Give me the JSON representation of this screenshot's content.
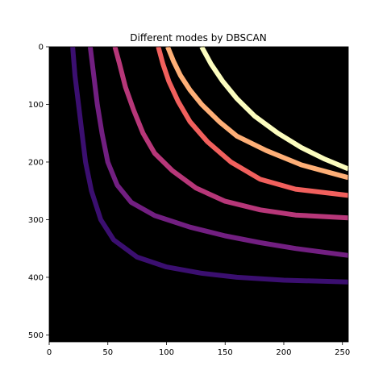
{
  "chart_data": {
    "type": "heatmap",
    "title": "Different modes by DBSCAN",
    "xlabel": "",
    "ylabel": "",
    "xlim": [
      0,
      255
    ],
    "ylim": [
      512,
      0
    ],
    "x_ticks": [
      0,
      50,
      100,
      150,
      200,
      250
    ],
    "y_ticks": [
      0,
      100,
      200,
      300,
      400,
      500
    ],
    "background_color": "#000000",
    "colormap": "inferno",
    "series": [
      {
        "color": "#3b0f70",
        "points": [
          [
            20,
            0
          ],
          [
            22,
            50
          ],
          [
            25,
            100
          ],
          [
            28,
            150
          ],
          [
            31,
            200
          ],
          [
            36,
            250
          ],
          [
            44,
            300
          ],
          [
            55,
            335
          ],
          [
            75,
            365
          ],
          [
            100,
            382
          ],
          [
            130,
            393
          ],
          [
            160,
            400
          ],
          [
            200,
            405
          ],
          [
            255,
            408
          ]
        ]
      },
      {
        "color": "#721f81",
        "points": [
          [
            35,
            0
          ],
          [
            38,
            50
          ],
          [
            41,
            100
          ],
          [
            45,
            150
          ],
          [
            50,
            200
          ],
          [
            58,
            240
          ],
          [
            70,
            270
          ],
          [
            90,
            293
          ],
          [
            120,
            313
          ],
          [
            150,
            328
          ],
          [
            180,
            340
          ],
          [
            210,
            350
          ],
          [
            255,
            362
          ]
        ]
      },
      {
        "color": "#b73779",
        "points": [
          [
            56,
            0
          ],
          [
            60,
            30
          ],
          [
            65,
            70
          ],
          [
            72,
            110
          ],
          [
            80,
            150
          ],
          [
            90,
            185
          ],
          [
            105,
            215
          ],
          [
            125,
            245
          ],
          [
            150,
            268
          ],
          [
            180,
            283
          ],
          [
            210,
            292
          ],
          [
            255,
            297
          ]
        ]
      },
      {
        "color": "#f1605d",
        "points": [
          [
            93,
            0
          ],
          [
            97,
            30
          ],
          [
            102,
            60
          ],
          [
            110,
            95
          ],
          [
            120,
            130
          ],
          [
            135,
            165
          ],
          [
            155,
            200
          ],
          [
            180,
            230
          ],
          [
            210,
            247
          ],
          [
            255,
            258
          ]
        ]
      },
      {
        "color": "#feaf77",
        "points": [
          [
            101,
            0
          ],
          [
            106,
            25
          ],
          [
            112,
            50
          ],
          [
            120,
            75
          ],
          [
            130,
            100
          ],
          [
            145,
            130
          ],
          [
            160,
            155
          ],
          [
            185,
            180
          ],
          [
            215,
            205
          ],
          [
            255,
            227
          ]
        ]
      },
      {
        "color": "#fcfdbf",
        "points": [
          [
            130,
            0
          ],
          [
            138,
            30
          ],
          [
            148,
            60
          ],
          [
            160,
            90
          ],
          [
            175,
            120
          ],
          [
            195,
            150
          ],
          [
            215,
            175
          ],
          [
            235,
            195
          ],
          [
            255,
            212
          ]
        ]
      }
    ]
  }
}
